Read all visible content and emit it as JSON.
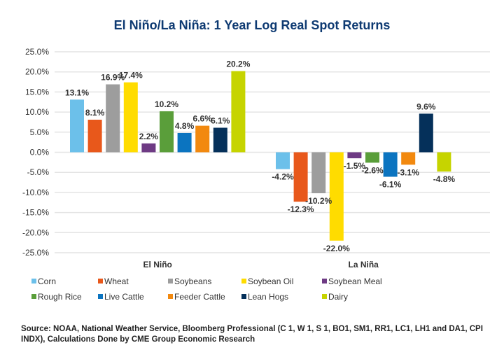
{
  "chart_data": {
    "type": "bar",
    "title": "El Niño/La Niña: 1 Year Log Real Spot Returns",
    "xlabel": "",
    "ylabel": "",
    "ylim": [
      -25,
      25
    ],
    "yticks": [
      25,
      20,
      15,
      10,
      5,
      0,
      -5,
      -10,
      -15,
      -20,
      -25
    ],
    "ytick_labels": [
      "25.0%",
      "20.0%",
      "15.0%",
      "10.0%",
      "5.0%",
      "0.0%",
      "-5.0%",
      "-10.0%",
      "-15.0%",
      "-20.0%",
      "-25.0%"
    ],
    "grid": true,
    "legend_position": "bottom",
    "categories": [
      "El Niño",
      "La Niña"
    ],
    "series": [
      {
        "name": "Corn",
        "color": "#6cc0ea",
        "values": [
          13.1,
          -4.2
        ],
        "labels": [
          "13.1%",
          "-4.2%"
        ]
      },
      {
        "name": "Wheat",
        "color": "#e8581b",
        "values": [
          8.1,
          -12.3
        ],
        "labels": [
          "8.1%",
          "-12.3%"
        ]
      },
      {
        "name": "Soybeans",
        "color": "#9d9d9d",
        "values": [
          16.9,
          -10.2
        ],
        "labels": [
          "16.9%",
          "-10.2%"
        ]
      },
      {
        "name": "Soybean Oil",
        "color": "#ffdc00",
        "values": [
          17.4,
          -22.0
        ],
        "labels": [
          "17.4%",
          "-22.0%"
        ]
      },
      {
        "name": "Soybean Meal",
        "color": "#6e3a84",
        "values": [
          2.2,
          -1.5
        ],
        "labels": [
          "2.2%",
          "-1.5%"
        ]
      },
      {
        "name": "Rough Rice",
        "color": "#5a9e3a",
        "values": [
          10.2,
          -2.6
        ],
        "labels": [
          "10.2%",
          "-2.6%"
        ]
      },
      {
        "name": "Live Cattle",
        "color": "#0b74c0",
        "values": [
          4.8,
          -6.1
        ],
        "labels": [
          "4.8%",
          "-6.1%"
        ]
      },
      {
        "name": "Feeder Cattle",
        "color": "#f2890f",
        "values": [
          6.6,
          -3.1
        ],
        "labels": [
          "6.6%",
          "-3.1%"
        ]
      },
      {
        "name": "Lean Hogs",
        "color": "#05305a",
        "values": [
          6.1,
          9.6
        ],
        "labels": [
          "6.1%",
          "9.6%"
        ]
      },
      {
        "name": "Dairy",
        "color": "#c6d400",
        "values": [
          20.2,
          -4.8
        ],
        "labels": [
          "20.2%",
          "-4.8%"
        ]
      }
    ]
  },
  "source": "Source: NOAA, National Weather Service, Bloomberg Professional (C 1, W 1, S 1, BO1, SM1, RR1, LC1, LH1 and DA1, CPI INDX), Calculations Done by CME Group Economic Research",
  "colors": {
    "title": "#0e3a72",
    "grid": "#e4e4e4",
    "text": "#333333"
  }
}
